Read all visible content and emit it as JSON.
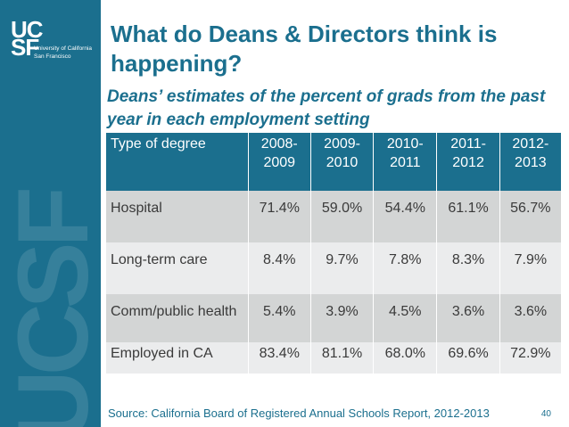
{
  "brand": {
    "logo_text_uc": "UC",
    "logo_text_sf": "SF",
    "logo_line1": "University of California",
    "logo_line2": "San Francisco",
    "watermark": "UCSF",
    "color": "#1b6f8e"
  },
  "slide": {
    "title": "What do Deans & Directors think is happening?",
    "subtitle": "Deans’ estimates of the percent of grads from the past year in each employment setting",
    "source": "Source: California Board of Registered Annual Schools Report, 2012-2013",
    "page_number": "40"
  },
  "table": {
    "headers": [
      "Type of degree",
      "2008-\n2009",
      "2009-\n2010",
      "2010-\n2011",
      "2011-\n2012",
      "2012-\n2013"
    ],
    "rows": [
      [
        "Hospital",
        "71.4%",
        "59.0%",
        "54.4%",
        "61.1%",
        "56.7%"
      ],
      [
        "Long-term care",
        "8.4%",
        "9.7%",
        "7.8%",
        "8.3%",
        "7.9%"
      ],
      [
        "Comm/public health",
        "5.4%",
        "3.9%",
        "4.5%",
        "3.6%",
        "3.6%"
      ],
      [
        "Employed in CA",
        "83.4%",
        "81.1%",
        "68.0%",
        "69.6%",
        "72.9%"
      ]
    ]
  }
}
